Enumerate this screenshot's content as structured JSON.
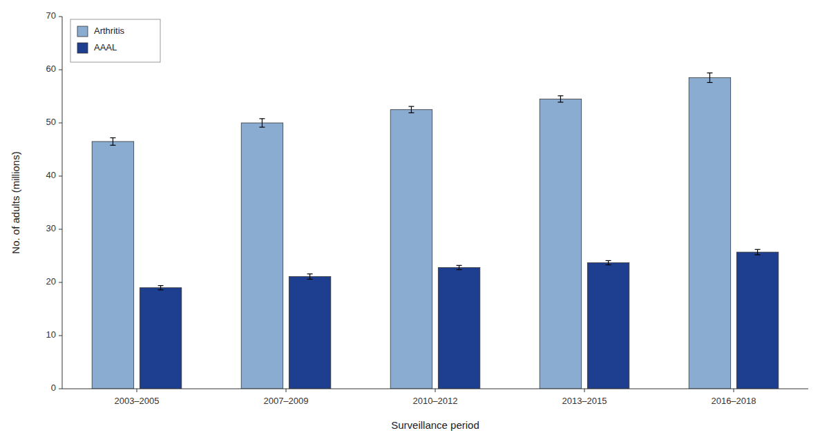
{
  "chart_data": {
    "type": "bar",
    "categories": [
      "2003–2005",
      "2007–2009",
      "2010–2012",
      "2013–2015",
      "2016–2018"
    ],
    "series": [
      {
        "name": "Arthritis",
        "color": "#8aacd0",
        "values": [
          46.5,
          50.0,
          52.5,
          54.5,
          58.5
        ],
        "errors": [
          0.7,
          0.8,
          0.6,
          0.6,
          0.9
        ]
      },
      {
        "name": "AAAL",
        "color": "#1e3f8f",
        "values": [
          19.0,
          21.1,
          22.8,
          23.7,
          25.7
        ],
        "errors": [
          0.4,
          0.5,
          0.4,
          0.4,
          0.5
        ]
      }
    ],
    "xlabel": "Surveillance period",
    "ylabel": "No. of adults (millions)",
    "ylim": [
      0,
      70
    ],
    "yticks": [
      0,
      10,
      20,
      30,
      40,
      50,
      60,
      70
    ],
    "grid": false,
    "legend": "upper left"
  }
}
